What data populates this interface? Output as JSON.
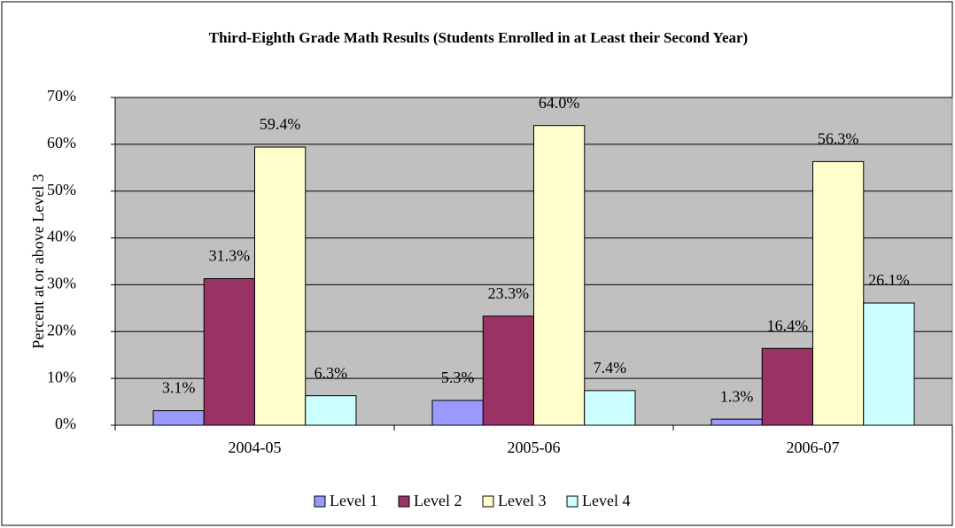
{
  "chart_data": {
    "type": "bar",
    "title": "Third-Eighth Grade Math Results (Students Enrolled in at Least their Second Year)",
    "y_label": "Percent at or above Level 3",
    "categories": [
      "2004-05",
      "2005-06",
      "2006-07"
    ],
    "series": [
      {
        "name": "Level 1",
        "color": "#9999ff",
        "values": [
          3.1,
          5.3,
          1.3
        ],
        "value_labels": [
          "3.1%",
          "5.3%",
          "1.3%"
        ]
      },
      {
        "name": "Level 2",
        "color": "#993366",
        "values": [
          31.3,
          23.3,
          16.4
        ],
        "value_labels": [
          "31.3%",
          "23.3%",
          "16.4%"
        ]
      },
      {
        "name": "Level 3",
        "color": "#ffffcc",
        "values": [
          59.4,
          64.0,
          56.3
        ],
        "value_labels": [
          "59.4%",
          "64.0%",
          "56.3%"
        ]
      },
      {
        "name": "Level 4",
        "color": "#ccffff",
        "values": [
          6.3,
          7.4,
          26.1
        ],
        "value_labels": [
          "6.3%",
          "7.4%",
          "26.1%"
        ]
      }
    ],
    "ylim": [
      0,
      70
    ],
    "yticks": [
      {
        "value": 0,
        "label": "0%"
      },
      {
        "value": 10,
        "label": "10%"
      },
      {
        "value": 20,
        "label": "20%"
      },
      {
        "value": 30,
        "label": "30%"
      },
      {
        "value": 40,
        "label": "40%"
      },
      {
        "value": 50,
        "label": "50%"
      },
      {
        "value": 60,
        "label": "60%"
      },
      {
        "value": 70,
        "label": "70%"
      }
    ],
    "grid": true,
    "legend": "bottom"
  }
}
